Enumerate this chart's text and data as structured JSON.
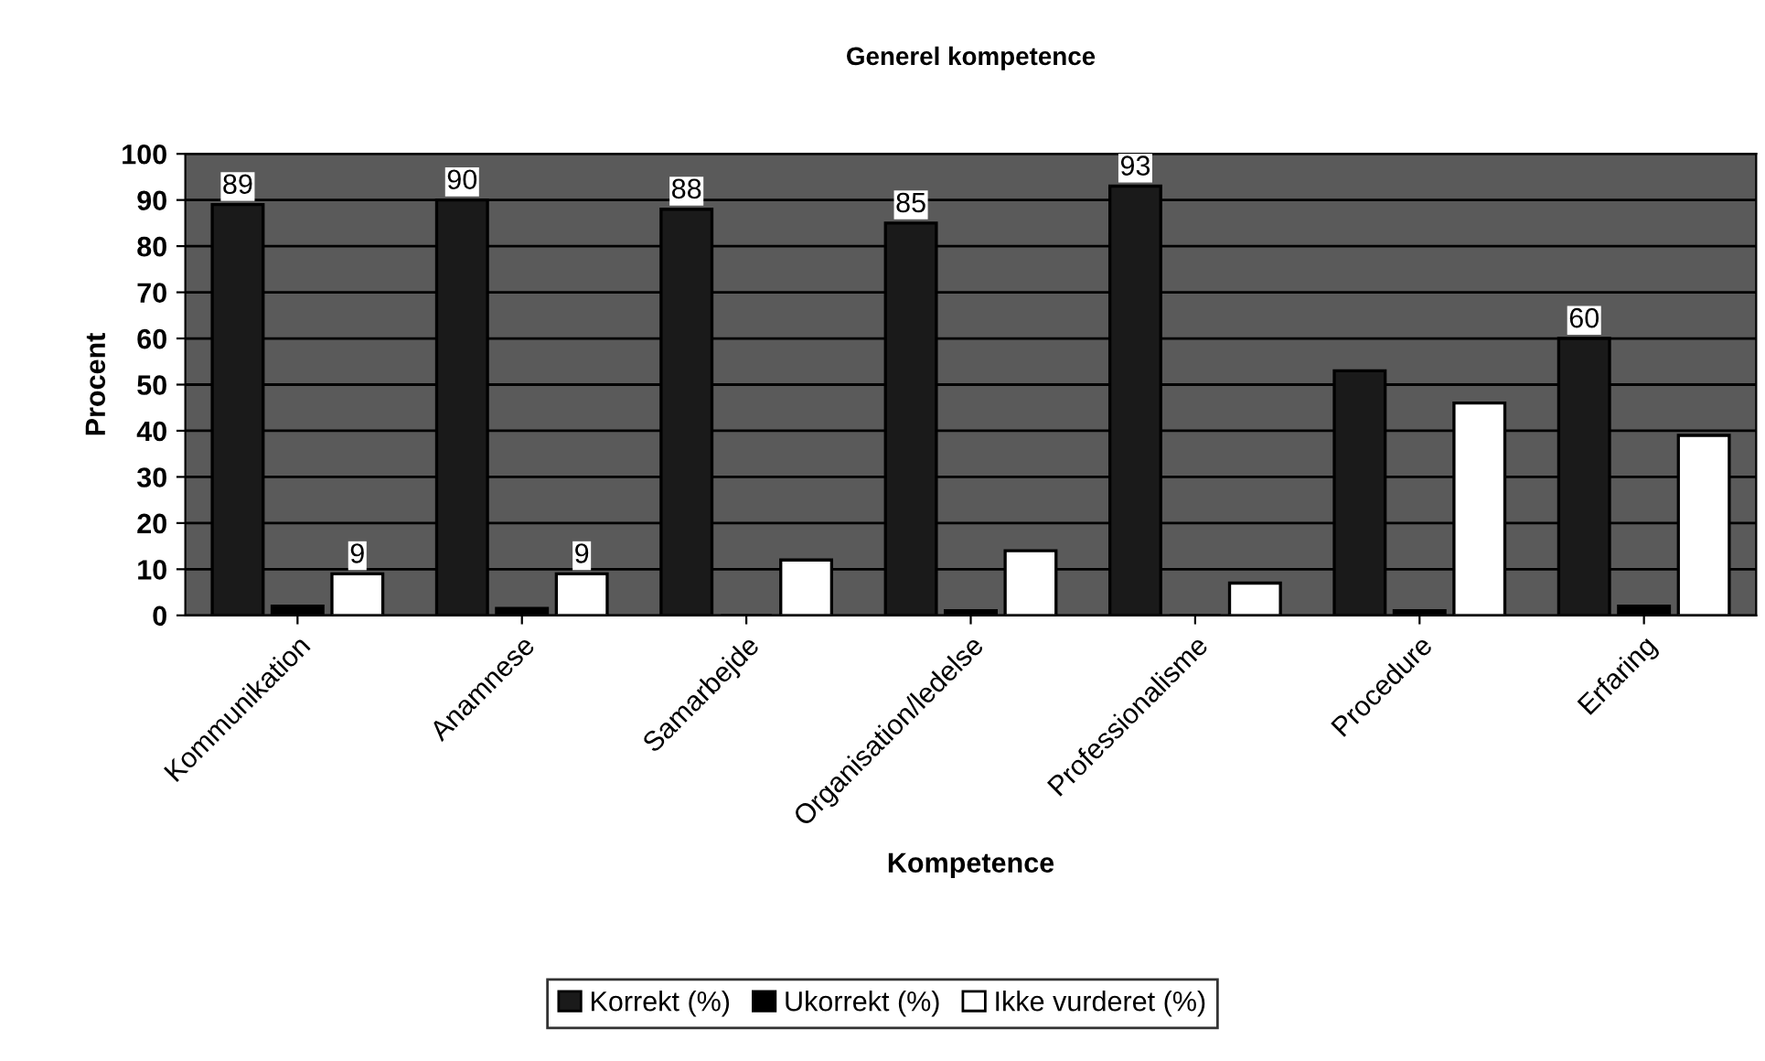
{
  "chart_data": {
    "type": "bar",
    "title": "Generel kompetence",
    "xlabel": "Kompetence",
    "ylabel": "Procent",
    "categories": [
      "Kommunikation",
      "Anamnese",
      "Samarbejde",
      "Organisation/ledelse",
      "Professionalisme",
      "Procedure",
      "Erfaring"
    ],
    "series": [
      {
        "name": "Korrekt (%)",
        "color": "#1a1a1a",
        "values": [
          89,
          90,
          88,
          85,
          93,
          53,
          60
        ],
        "value_labels": [
          "89",
          "90",
          "88",
          "85",
          "93",
          null,
          "60"
        ]
      },
      {
        "name": "Ukorrekt (%)",
        "color": "#000000",
        "values": [
          2,
          1.5,
          0,
          1,
          0,
          1,
          2
        ]
      },
      {
        "name": "Ikke vurderet (%)",
        "color": "#ffffff",
        "values": [
          9,
          9,
          12,
          14,
          7,
          46,
          39
        ],
        "value_labels": [
          "9",
          "9",
          null,
          null,
          null,
          null,
          null
        ]
      }
    ],
    "ylim": [
      0,
      100
    ],
    "yticks": [
      0,
      10,
      20,
      30,
      40,
      50,
      60,
      70,
      80,
      90,
      100
    ],
    "grid": "y",
    "legend": "bottom"
  }
}
